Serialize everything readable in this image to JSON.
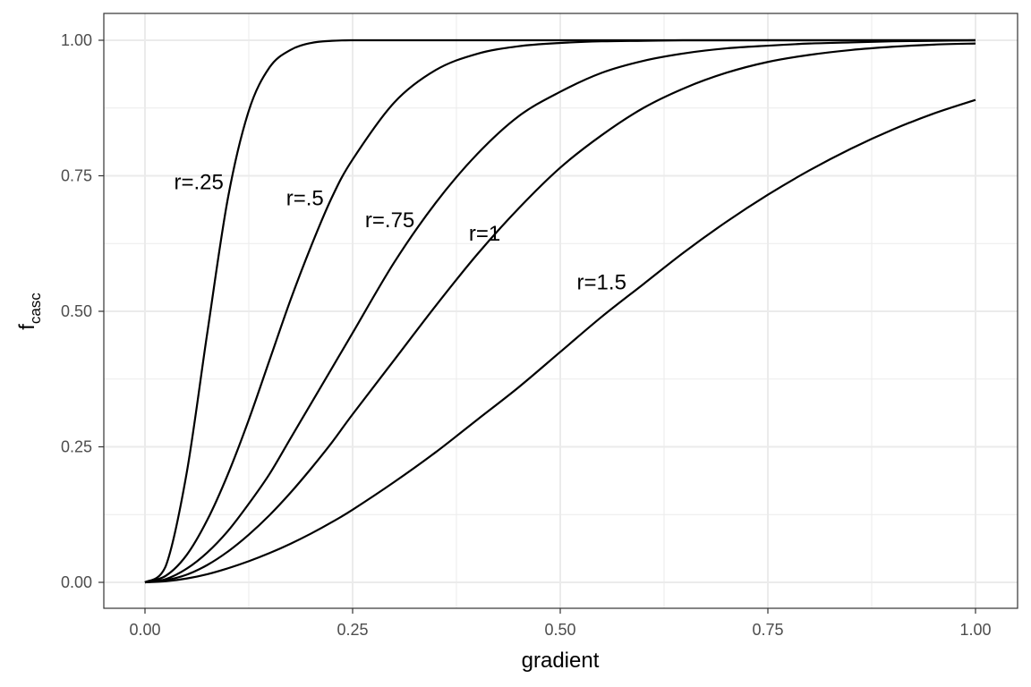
{
  "chart_data": {
    "type": "line",
    "xlabel": "gradient",
    "ylabel_main": "f",
    "ylabel_sub": "casc",
    "xlim": [
      0,
      1
    ],
    "ylim": [
      0,
      1
    ],
    "x_ticks": [
      0,
      0.25,
      0.5,
      0.75,
      1
    ],
    "x_tick_labels": [
      "0.00",
      "0.25",
      "0.50",
      "0.75",
      "1.00"
    ],
    "y_ticks": [
      0,
      0.25,
      0.5,
      0.75,
      1
    ],
    "y_tick_labels": [
      "0.00",
      "0.25",
      "0.50",
      "0.75",
      "1.00"
    ],
    "grid": true,
    "x": [
      0,
      0.025,
      0.05,
      0.075,
      0.1,
      0.125,
      0.15,
      0.175,
      0.2,
      0.225,
      0.25,
      0.3,
      0.35,
      0.4,
      0.45,
      0.5,
      0.55,
      0.6,
      0.65,
      0.7,
      0.75,
      0.8,
      0.85,
      0.9,
      0.95,
      1.0
    ],
    "series": [
      {
        "name": "r=.25",
        "label_x": 0.035,
        "label_y": 0.74,
        "values": [
          0,
          0.03,
          0.2,
          0.46,
          0.71,
          0.87,
          0.95,
          0.982,
          0.995,
          0.999,
          1.0,
          1.0,
          1.0,
          1.0,
          1.0,
          1.0,
          1.0,
          1.0,
          1.0,
          1.0,
          1.0,
          1.0,
          1.0,
          1.0,
          1.0,
          1.0
        ]
      },
      {
        "name": "r=.5",
        "label_x": 0.17,
        "label_y": 0.71,
        "values": [
          0,
          0.012,
          0.05,
          0.115,
          0.2,
          0.3,
          0.41,
          0.52,
          0.62,
          0.71,
          0.78,
          0.885,
          0.945,
          0.975,
          0.989,
          0.995,
          0.998,
          0.999,
          1.0,
          1.0,
          1.0,
          1.0,
          1.0,
          1.0,
          1.0,
          1.0
        ]
      },
      {
        "name": "r=.75",
        "label_x": 0.265,
        "label_y": 0.67,
        "values": [
          0,
          0.006,
          0.025,
          0.055,
          0.095,
          0.145,
          0.2,
          0.265,
          0.33,
          0.395,
          0.46,
          0.59,
          0.7,
          0.79,
          0.86,
          0.905,
          0.94,
          0.962,
          0.976,
          0.985,
          0.99,
          0.994,
          0.996,
          0.998,
          0.999,
          1.0
        ]
      },
      {
        "name": "r=1",
        "label_x": 0.39,
        "label_y": 0.645,
        "values": [
          0,
          0.004,
          0.014,
          0.032,
          0.057,
          0.088,
          0.124,
          0.165,
          0.21,
          0.258,
          0.31,
          0.41,
          0.51,
          0.605,
          0.69,
          0.765,
          0.825,
          0.875,
          0.912,
          0.94,
          0.96,
          0.973,
          0.982,
          0.988,
          0.992,
          0.994
        ]
      },
      {
        "name": "r=1.5",
        "label_x": 0.52,
        "label_y": 0.555,
        "values": [
          0,
          0.002,
          0.007,
          0.015,
          0.026,
          0.039,
          0.054,
          0.071,
          0.09,
          0.111,
          0.134,
          0.185,
          0.24,
          0.3,
          0.36,
          0.425,
          0.49,
          0.55,
          0.61,
          0.665,
          0.715,
          0.76,
          0.8,
          0.835,
          0.865,
          0.89
        ]
      }
    ]
  }
}
